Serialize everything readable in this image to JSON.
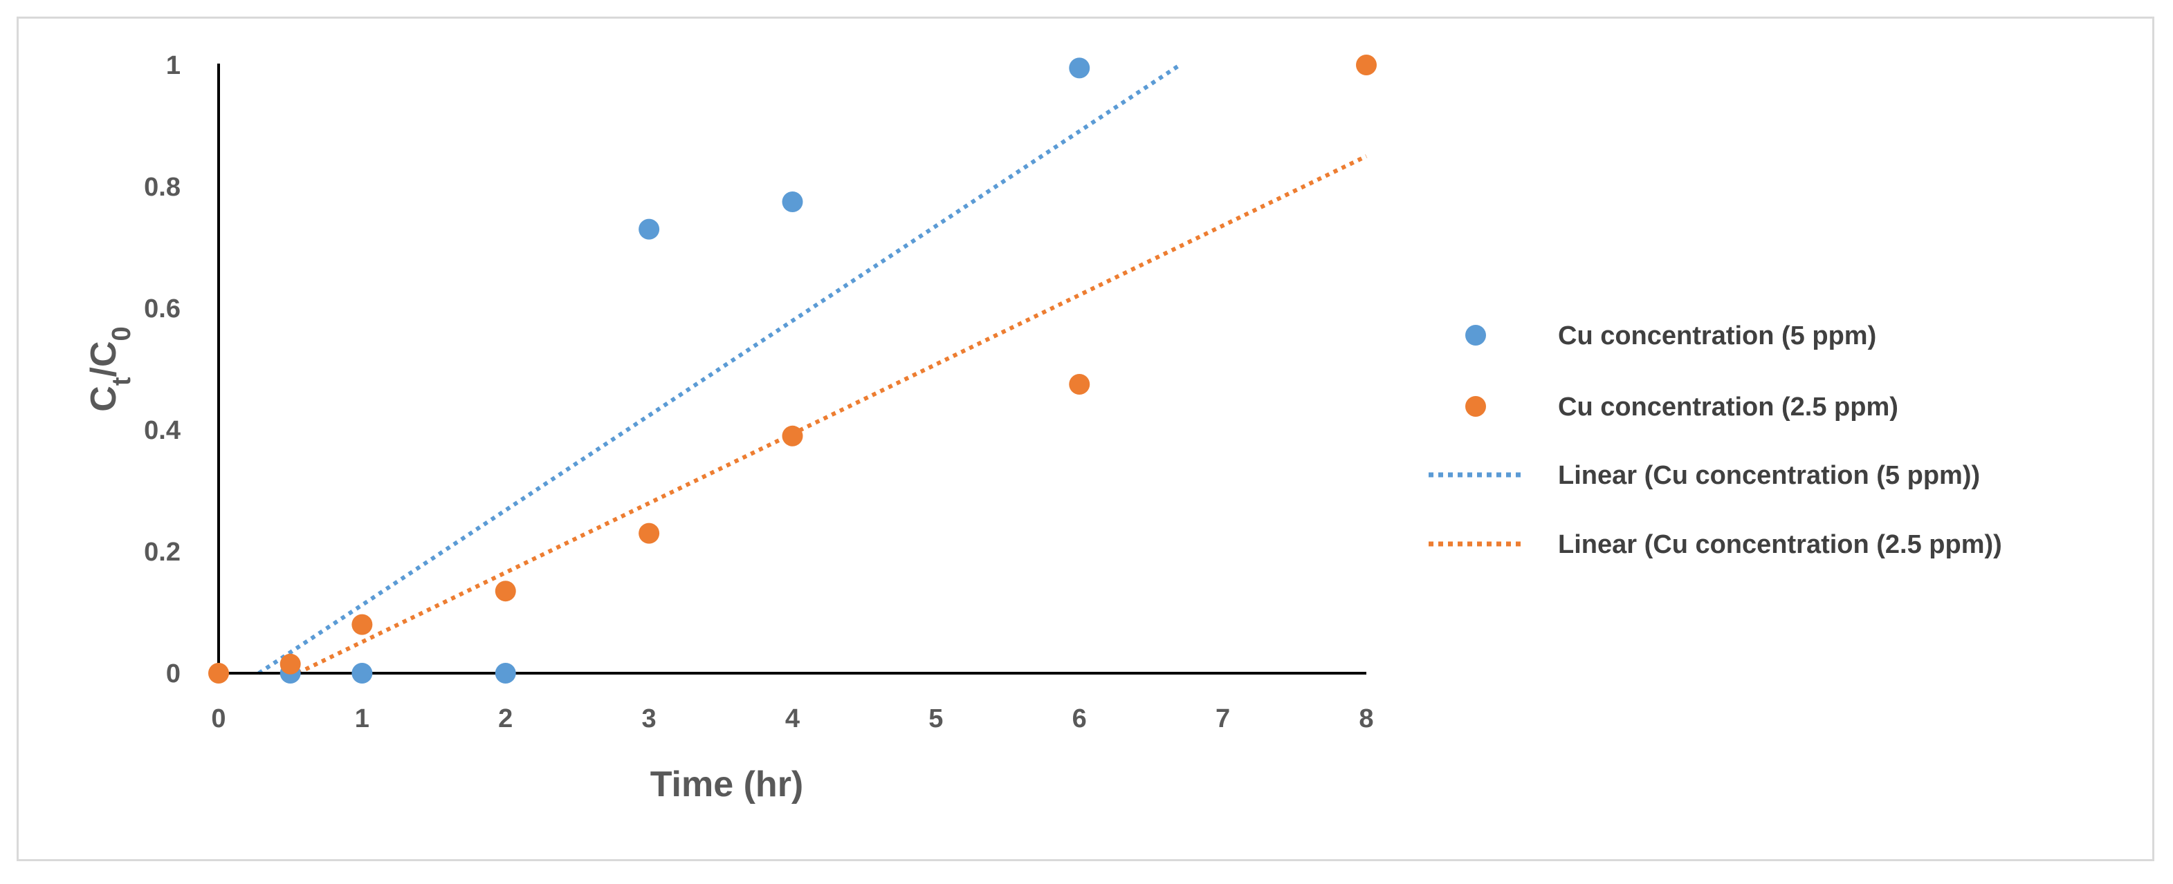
{
  "chart_data": {
    "type": "scatter",
    "title": "",
    "xlabel": "Time (hr)",
    "ylabel": {
      "main": "C",
      "sub1": "t",
      "sep": "/C",
      "sub2": "0"
    },
    "xlim": [
      0,
      8
    ],
    "ylim": [
      0,
      1
    ],
    "xticks": [
      "0",
      "1",
      "2",
      "3",
      "4",
      "5",
      "6",
      "7",
      "8"
    ],
    "yticks": [
      "0",
      "0.2",
      "0.4",
      "0.6",
      "0.8",
      "1"
    ],
    "grid": false,
    "legend_position": "right",
    "series": [
      {
        "name": "Cu concentration (5 ppm)",
        "color": "#5B9BD5",
        "points": [
          {
            "x": 0.5,
            "y": 0.0
          },
          {
            "x": 1,
            "y": 0.0
          },
          {
            "x": 2,
            "y": 0.0
          },
          {
            "x": 3,
            "y": 0.73
          },
          {
            "x": 4,
            "y": 0.775
          },
          {
            "x": 6,
            "y": 0.995
          }
        ]
      },
      {
        "name": "Cu concentration (2.5 ppm)",
        "color": "#ED7D31",
        "points": [
          {
            "x": 0,
            "y": 0.0
          },
          {
            "x": 0.5,
            "y": 0.015
          },
          {
            "x": 1,
            "y": 0.08
          },
          {
            "x": 2,
            "y": 0.135
          },
          {
            "x": 3,
            "y": 0.23
          },
          {
            "x": 4,
            "y": 0.39
          },
          {
            "x": 6,
            "y": 0.475
          },
          {
            "x": 8,
            "y": 1.0
          }
        ]
      }
    ],
    "trendlines": [
      {
        "name": "Linear (Cu concentration (5 ppm))",
        "color": "#5B9BD5",
        "style": "dotted",
        "start": {
          "x": 0.28,
          "y": 0.0
        },
        "end": {
          "x": 6.7,
          "y": 1.0
        }
      },
      {
        "name": "Linear (Cu concentration (2.5 ppm))",
        "color": "#ED7D31",
        "style": "dotted",
        "start": {
          "x": 0.55,
          "y": 0.0
        },
        "end": {
          "x": 8.0,
          "y": 0.85
        }
      }
    ]
  }
}
